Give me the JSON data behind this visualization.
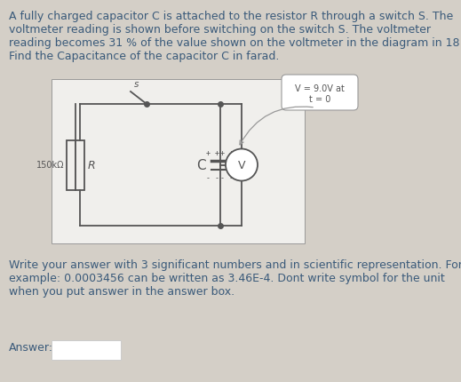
{
  "bg_color": "#d4cfc7",
  "text_color": "#3a5a7a",
  "circuit_bg": "#f0efec",
  "title_lines": [
    "A fully charged capacitor C is attached to the resistor R through a switch S. The",
    "voltmeter reading is shown before switching on the switch S. The voltmeter",
    "reading becomes 31 % of the value shown on the voltmeter in the diagram in 18 s.",
    "Find the Capacitance of the capacitor C in farad."
  ],
  "bottom_lines": [
    "Write your answer with 3 significant numbers and in scientific representation. For",
    "example: 0.0003456 can be written as 3.46E-4. Dont write symbol for the unit",
    "when you put answer in the answer box."
  ],
  "answer_label": "Answer:",
  "voltmeter_label1": "V = 9.0V at",
  "voltmeter_label2": "t = 0",
  "resistor_label": "150kΩ",
  "R_label": "R",
  "C_label": "C",
  "S_label": "s",
  "V_label": "V",
  "font_size_body": 9.0,
  "font_size_circuit": 7.5
}
